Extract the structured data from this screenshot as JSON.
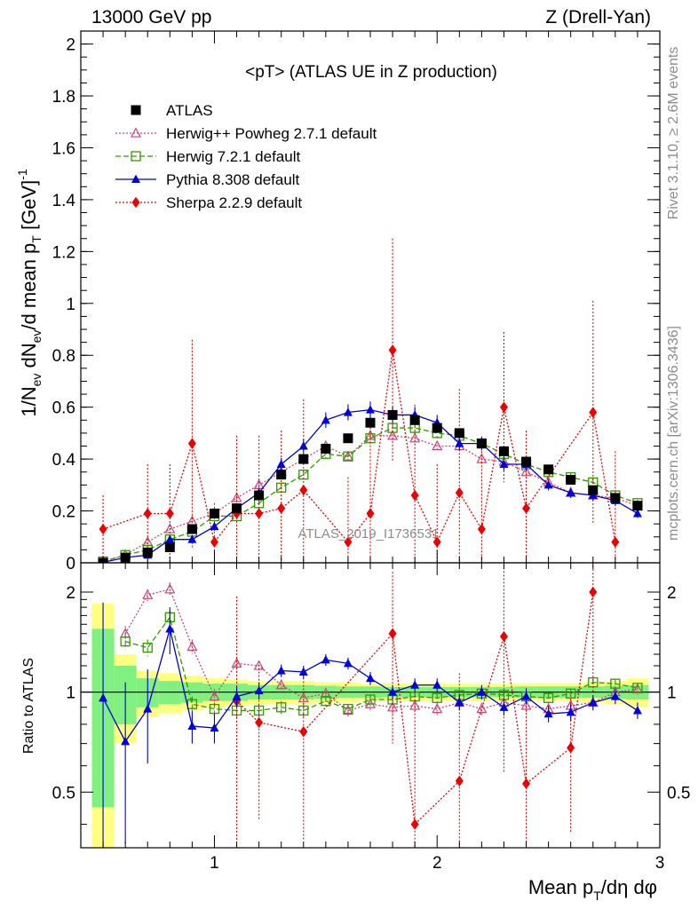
{
  "header": {
    "left": "13000 GeV pp",
    "right": "Z (Drell-Yan)"
  },
  "side_labels": {
    "rivet": "Rivet 3.1.10, ≥ 2.6M events",
    "mcplots": "mcplots.cern.ch [arXiv:1306.3436]"
  },
  "watermark": "ATLAS_2019_I1736531",
  "colors": {
    "atlas": "#000000",
    "herwigpp": "#cc4477",
    "herwig7": "#339900",
    "pythia": "#0000dd",
    "sherpa": "#ee0000",
    "band_inner": "#80f080",
    "band_outer": "#ffff80"
  },
  "chart_data": {
    "type": "scatter",
    "title": "<pT> (ATLAS UE in Z production)",
    "xlabel": "Mean p_T/dη dφ",
    "ylabel": "1/N_ev dN_ev/d mean p_T [GeV]^-1",
    "ratio_ylabel": "Ratio to ATLAS",
    "xlim": [
      0.4,
      3.0
    ],
    "ylim": [
      0,
      2.05
    ],
    "ratio_ylim": [
      0.34,
      2.45
    ],
    "x_ticks": [
      "1",
      "2",
      "3"
    ],
    "y_ticks": [
      "0",
      "0.2",
      "0.4",
      "0.6",
      "0.8",
      "1",
      "1.2",
      "1.4",
      "1.6",
      "1.8",
      "2"
    ],
    "ratio_ticks": [
      "0.5",
      "1",
      "2"
    ],
    "x": [
      0.5,
      0.6,
      0.7,
      0.8,
      0.9,
      1.0,
      1.1,
      1.2,
      1.3,
      1.4,
      1.5,
      1.6,
      1.7,
      1.8,
      1.9,
      2.0,
      2.1,
      2.2,
      2.3,
      2.4,
      2.5,
      2.6,
      2.7,
      2.8,
      2.9
    ],
    "band_inner": [
      0.55,
      0.2,
      0.1,
      0.08,
      0.07,
      0.06,
      0.06,
      0.05,
      0.05,
      0.05,
      0.045,
      0.04,
      0.04,
      0.035,
      0.035,
      0.035,
      0.035,
      0.035,
      0.035,
      0.04,
      0.04,
      0.04,
      0.04,
      0.045,
      0.05
    ],
    "band_outer": [
      0.85,
      0.3,
      0.16,
      0.14,
      0.12,
      0.1,
      0.09,
      0.08,
      0.08,
      0.08,
      0.07,
      0.07,
      0.06,
      0.06,
      0.06,
      0.06,
      0.06,
      0.06,
      0.06,
      0.06,
      0.06,
      0.06,
      0.07,
      0.08,
      0.1
    ],
    "series": [
      {
        "name": "ATLAS",
        "style": "data",
        "values": [
          0.0,
          0.02,
          0.04,
          0.06,
          0.13,
          0.19,
          0.21,
          0.26,
          0.34,
          0.4,
          0.44,
          0.48,
          0.54,
          0.57,
          0.55,
          0.52,
          0.5,
          0.46,
          0.43,
          0.39,
          0.36,
          0.32,
          0.28,
          0.25,
          0.22
        ],
        "errors": [
          0.004,
          0.004,
          0.004,
          0.005,
          0.005,
          0.006,
          0.006,
          0.007,
          0.007,
          0.008,
          0.008,
          0.009,
          0.009,
          0.009,
          0.009,
          0.009,
          0.009,
          0.008,
          0.008,
          0.008,
          0.007,
          0.007,
          0.007,
          0.006,
          0.006
        ],
        "ratio": null,
        "ratio_errors": null
      },
      {
        "name": "Herwig++ Powheg 2.7.1 default",
        "style": "dotted-open-triangle",
        "values": [
          0.005,
          0.03,
          0.08,
          0.13,
          0.16,
          0.19,
          0.25,
          0.3,
          0.35,
          0.4,
          0.45,
          0.41,
          0.49,
          0.49,
          0.48,
          0.45,
          0.45,
          0.4,
          0.39,
          0.35,
          0.31,
          0.27,
          0.26,
          0.25,
          0.22
        ],
        "errors": [
          0.005,
          0.008,
          0.012,
          0.015,
          0.015,
          0.015,
          0.016,
          0.017,
          0.018,
          0.019,
          0.02,
          0.019,
          0.021,
          0.021,
          0.021,
          0.02,
          0.02,
          0.019,
          0.019,
          0.018,
          0.017,
          0.016,
          0.016,
          0.015,
          0.014
        ],
        "ratio": [
          null,
          1.5,
          1.96,
          2.04,
          1.37,
          0.97,
          1.22,
          1.2,
          1.05,
          0.96,
          0.99,
          0.88,
          0.92,
          0.9,
          0.91,
          0.89,
          0.93,
          0.89,
          0.93,
          0.91,
          0.89,
          0.91,
          0.93,
          1.0,
          1.02
        ],
        "ratio_errors": [
          null,
          0.08,
          0.08,
          0.1,
          0.07,
          0.05,
          0.05,
          0.04,
          0.04,
          0.04,
          0.04,
          0.04,
          0.04,
          0.04,
          0.04,
          0.04,
          0.04,
          0.04,
          0.04,
          0.04,
          0.04,
          0.04,
          0.04,
          0.04,
          0.04
        ]
      },
      {
        "name": "Herwig 7.2.1 default",
        "style": "dashed-open-square",
        "values": [
          0.005,
          0.03,
          0.05,
          0.09,
          0.12,
          0.18,
          0.18,
          0.23,
          0.29,
          0.34,
          0.42,
          0.41,
          0.48,
          0.52,
          0.52,
          0.5,
          0.49,
          0.46,
          0.42,
          0.38,
          0.35,
          0.33,
          0.31,
          0.26,
          0.23
        ],
        "errors": [
          0.005,
          0.008,
          0.01,
          0.012,
          0.012,
          0.013,
          0.013,
          0.014,
          0.015,
          0.016,
          0.018,
          0.018,
          0.019,
          0.02,
          0.02,
          0.02,
          0.019,
          0.018,
          0.018,
          0.017,
          0.016,
          0.016,
          0.015,
          0.014,
          0.013
        ],
        "ratio": [
          null,
          1.42,
          1.36,
          1.68,
          0.92,
          0.89,
          0.88,
          0.88,
          0.9,
          0.88,
          0.94,
          0.89,
          0.95,
          0.95,
          0.97,
          0.96,
          0.98,
          0.99,
          0.98,
          0.97,
          0.96,
          0.99,
          1.07,
          1.06,
          1.03
        ],
        "ratio_errors": [
          null,
          0.08,
          0.08,
          0.08,
          0.05,
          0.04,
          0.04,
          0.04,
          0.04,
          0.04,
          0.03,
          0.03,
          0.03,
          0.03,
          0.03,
          0.03,
          0.03,
          0.03,
          0.03,
          0.03,
          0.03,
          0.03,
          0.03,
          0.03,
          0.03
        ]
      },
      {
        "name": "Pythia 8.308 default",
        "style": "solid-filled-triangle",
        "values": [
          0.002,
          0.02,
          0.03,
          0.09,
          0.09,
          0.14,
          0.21,
          0.27,
          0.38,
          0.45,
          0.55,
          0.58,
          0.59,
          0.57,
          0.57,
          0.54,
          0.46,
          0.46,
          0.38,
          0.38,
          0.3,
          0.27,
          0.26,
          0.24,
          0.19
        ],
        "errors": [
          0.008,
          0.01,
          0.012,
          0.015,
          0.015,
          0.016,
          0.018,
          0.02,
          0.024,
          0.027,
          0.03,
          0.031,
          0.032,
          0.031,
          0.031,
          0.03,
          0.027,
          0.027,
          0.024,
          0.024,
          0.021,
          0.02,
          0.02,
          0.019,
          0.017
        ],
        "ratio": [
          0.96,
          0.71,
          0.89,
          1.55,
          0.79,
          0.78,
          0.97,
          1.01,
          1.16,
          1.15,
          1.25,
          1.22,
          1.1,
          1.0,
          1.05,
          1.05,
          0.93,
          1.0,
          0.9,
          0.97,
          0.86,
          0.87,
          0.93,
          0.97,
          0.88
        ],
        "ratio_errors": [
          0.9,
          0.36,
          0.28,
          0.25,
          0.09,
          0.08,
          0.07,
          0.06,
          0.05,
          0.05,
          0.05,
          0.05,
          0.05,
          0.05,
          0.05,
          0.05,
          0.05,
          0.05,
          0.05,
          0.05,
          0.05,
          0.05,
          0.05,
          0.05,
          0.05
        ]
      },
      {
        "name": "Sherpa 2.2.9 default",
        "style": "dotted-filled-diamond",
        "values": [
          0.13,
          null,
          0.19,
          0.19,
          0.46,
          0.08,
          0.19,
          0.19,
          0.21,
          0.28,
          null,
          0.08,
          0.19,
          0.82,
          0.26,
          0.08,
          0.27,
          0.13,
          0.6,
          0.21,
          null,
          null,
          0.58,
          0.08,
          null
        ],
        "errors": [
          0.13,
          null,
          0.19,
          0.19,
          0.4,
          0.15,
          0.3,
          0.3,
          0.3,
          0.35,
          null,
          0.25,
          0.4,
          0.43,
          0.35,
          0.3,
          0.4,
          0.3,
          0.29,
          0.3,
          null,
          null,
          0.43,
          0.35,
          null
        ],
        "ratio": [
          null,
          null,
          null,
          null,
          null,
          null,
          0.94,
          0.81,
          null,
          0.76,
          null,
          null,
          null,
          1.5,
          0.4,
          null,
          0.54,
          null,
          1.47,
          0.53,
          null,
          0.68,
          2.0,
          null,
          null
        ],
        "ratio_errors": [
          null,
          null,
          null,
          null,
          null,
          null,
          1.0,
          0.4,
          null,
          0.4,
          null,
          null,
          null,
          0.8,
          0.6,
          null,
          0.6,
          null,
          0.9,
          0.5,
          null,
          0.3,
          1.0,
          null,
          null
        ]
      }
    ]
  }
}
